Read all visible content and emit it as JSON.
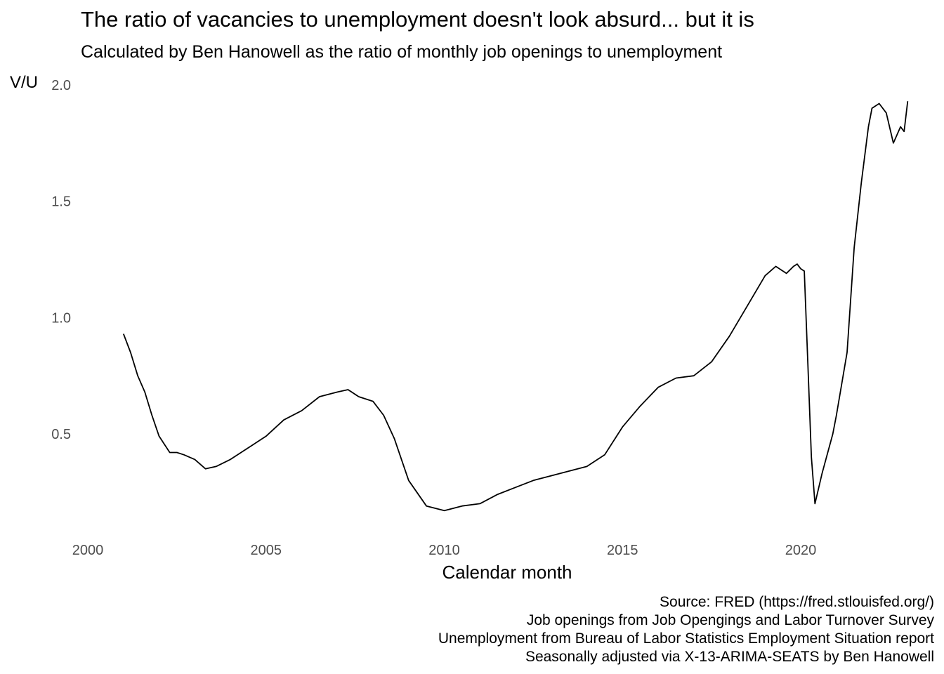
{
  "chart_data": {
    "type": "line",
    "title": "The ratio of vacancies to unemployment doesn't look absurd... but it is",
    "subtitle": "Calculated by Ben Hanowell as the ratio of monthly job openings to unemployment",
    "xlabel": "Calendar month",
    "ylabel": "V/U",
    "xlim": [
      2000,
      2023
    ],
    "ylim": [
      0.15,
      2.0
    ],
    "x_ticks": [
      "2000",
      "2005",
      "2010",
      "2015",
      "2020"
    ],
    "y_ticks": [
      "0.5",
      "1.0",
      "1.5",
      "2.0"
    ],
    "grid": false,
    "legend": "none",
    "line_color": "#000000",
    "caption": [
      "Source: FRED (https://fred.stlouisfed.org/)",
      "Job openings from Job Opengings and Labor Turnover Survey",
      "Unemployment from Bureau of Labor Statistics Employment Situation report",
      "Seasonally adjusted via X-13-ARIMA-SEATS by Ben Hanowell"
    ],
    "x": [
      2001.0,
      2001.2,
      2001.4,
      2001.6,
      2001.8,
      2002.0,
      2002.3,
      2002.5,
      2002.7,
      2003.0,
      2003.3,
      2003.6,
      2004.0,
      2004.5,
      2005.0,
      2005.5,
      2006.0,
      2006.5,
      2007.0,
      2007.3,
      2007.6,
      2008.0,
      2008.3,
      2008.6,
      2009.0,
      2009.5,
      2010.0,
      2010.5,
      2011.0,
      2011.5,
      2012.0,
      2012.5,
      2013.0,
      2013.5,
      2014.0,
      2014.5,
      2015.0,
      2015.5,
      2016.0,
      2016.5,
      2017.0,
      2017.5,
      2018.0,
      2018.5,
      2019.0,
      2019.3,
      2019.6,
      2019.8,
      2019.9,
      2020.0,
      2020.1,
      2020.2,
      2020.3,
      2020.4,
      2020.6,
      2020.9,
      2021.0,
      2021.3,
      2021.5,
      2021.7,
      2021.9,
      2022.0,
      2022.2,
      2022.4,
      2022.6,
      2022.8,
      2022.9,
      2023.0
    ],
    "y": [
      0.93,
      0.85,
      0.75,
      0.68,
      0.58,
      0.49,
      0.42,
      0.42,
      0.41,
      0.39,
      0.35,
      0.36,
      0.39,
      0.44,
      0.49,
      0.56,
      0.6,
      0.66,
      0.68,
      0.69,
      0.66,
      0.64,
      0.58,
      0.48,
      0.3,
      0.19,
      0.17,
      0.19,
      0.2,
      0.24,
      0.27,
      0.3,
      0.32,
      0.34,
      0.36,
      0.41,
      0.53,
      0.62,
      0.7,
      0.74,
      0.75,
      0.81,
      0.92,
      1.05,
      1.18,
      1.22,
      1.19,
      1.22,
      1.23,
      1.21,
      1.2,
      0.8,
      0.4,
      0.2,
      0.33,
      0.5,
      0.58,
      0.85,
      1.3,
      1.58,
      1.82,
      1.9,
      1.92,
      1.88,
      1.75,
      1.82,
      1.8,
      1.93
    ]
  }
}
